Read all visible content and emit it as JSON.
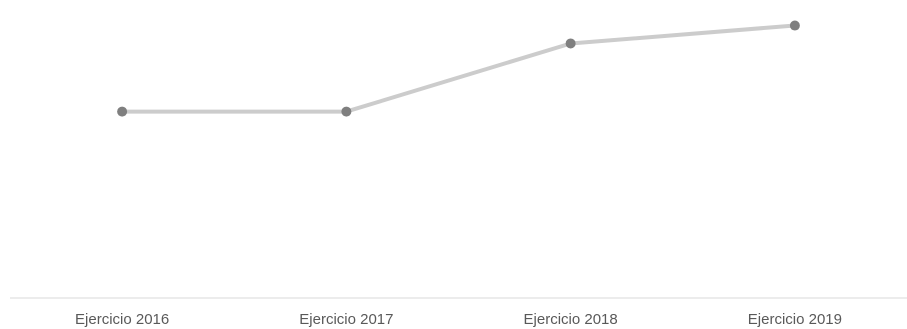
{
  "chart_data": {
    "type": "line",
    "title": "",
    "xlabel": "",
    "ylabel": "",
    "categories": [
      "Ejercicio 2016",
      "Ejercicio 2017",
      "Ejercicio 2018",
      "Ejercicio 2019"
    ],
    "series": [
      {
        "values": [
          52,
          52,
          71,
          76
        ]
      }
    ],
    "ylim": [
      0,
      80
    ],
    "y_axis_visible": false,
    "grid": false,
    "legend": "none",
    "colors": {
      "line": "#cccccc",
      "marker": "#7f7f7f",
      "axis": "#d9d9d9",
      "tick_text": "#595959"
    }
  }
}
